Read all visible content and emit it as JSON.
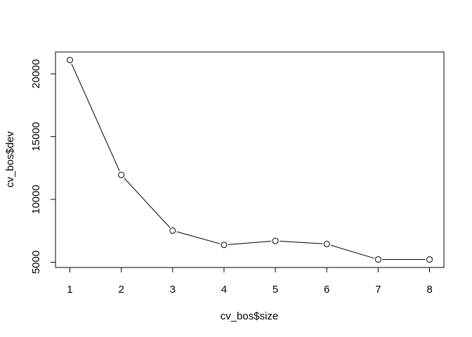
{
  "chart_data": {
    "type": "line",
    "xlabel": "cv_bos$size",
    "ylabel": "cv_bos$dev",
    "x": [
      1,
      2,
      3,
      4,
      5,
      6,
      7,
      8
    ],
    "series": [
      {
        "values": [
          21100,
          11950,
          7520,
          6380,
          6700,
          6450,
          5220,
          5220
        ]
      }
    ],
    "xlim": [
      0.72,
      8.28
    ],
    "ylim": [
      4580,
      21740
    ],
    "xticks": [
      1,
      2,
      3,
      4,
      5,
      6,
      7,
      8
    ],
    "yticks": [
      5000,
      10000,
      15000,
      20000
    ],
    "marker": "open-circle",
    "line_color": "#000000",
    "grid": false,
    "legend": "none"
  }
}
